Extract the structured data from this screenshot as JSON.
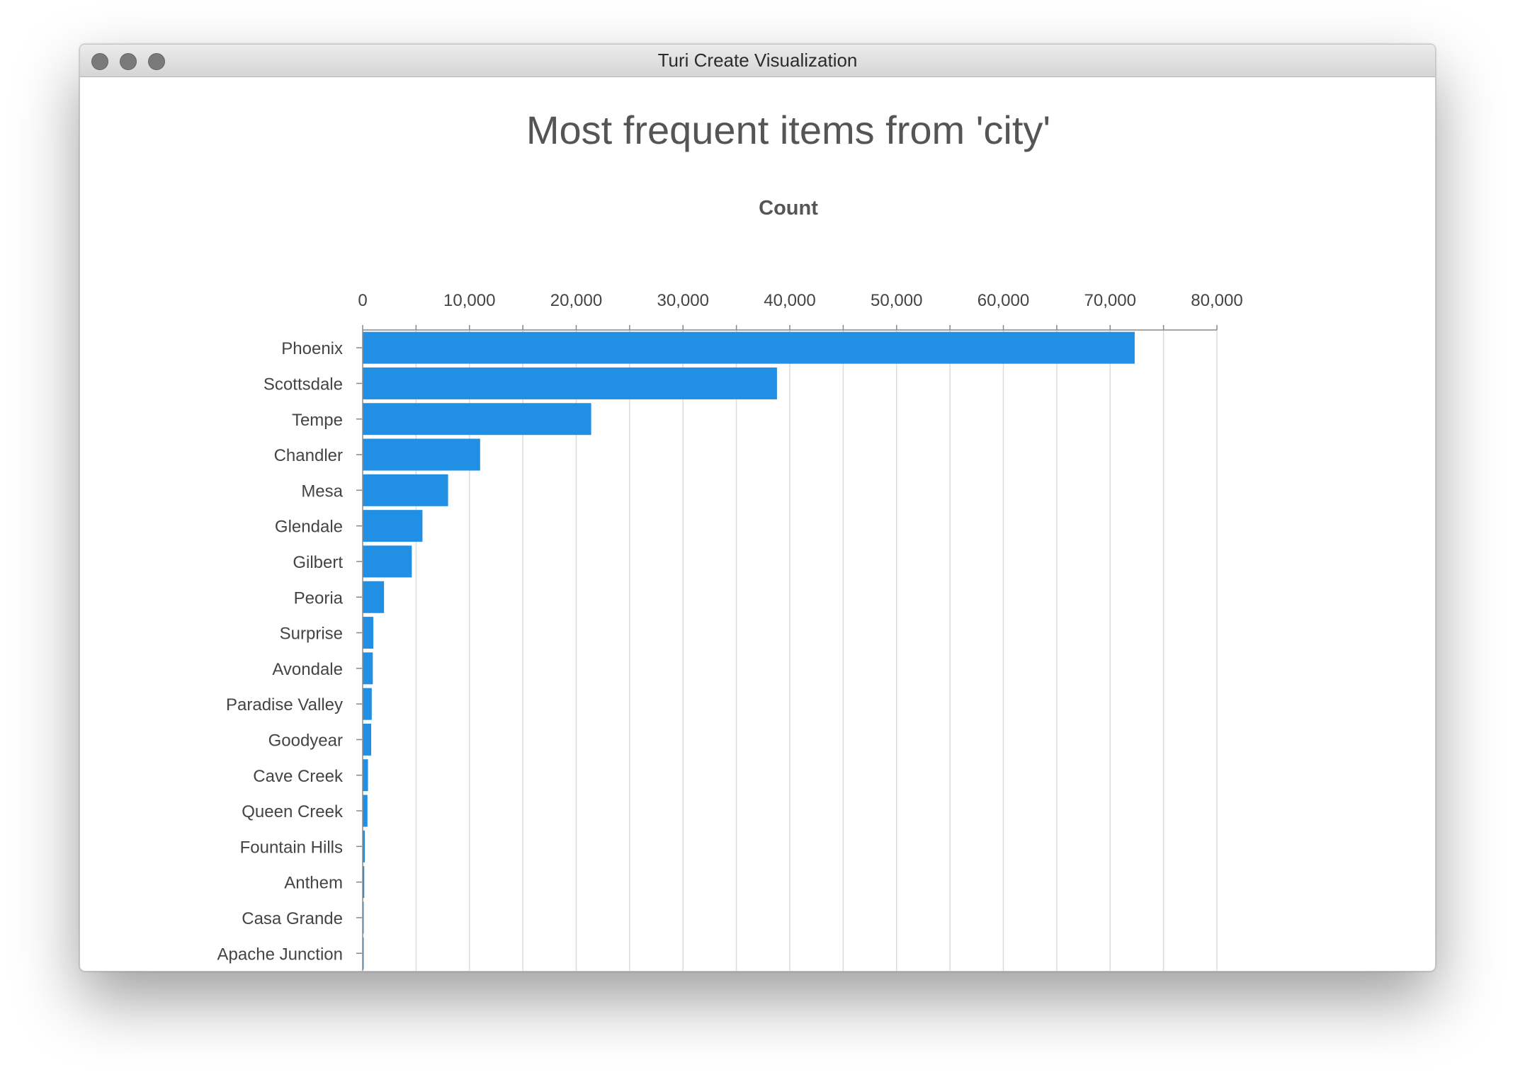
{
  "window": {
    "title": "Turi Create Visualization",
    "controls": [
      "close-icon",
      "minimize-icon",
      "zoom-icon"
    ]
  },
  "chart_data": {
    "type": "bar",
    "orientation": "horizontal",
    "title": "Most frequent items from 'city'",
    "xlabel": "Count",
    "ylabel": "",
    "xlim": [
      0,
      80000
    ],
    "x_ticks": [
      0,
      10000,
      20000,
      30000,
      40000,
      50000,
      60000,
      70000,
      80000
    ],
    "x_tick_labels": [
      "0",
      "10,000",
      "20,000",
      "30,000",
      "40,000",
      "50,000",
      "60,000",
      "70,000",
      "80,000"
    ],
    "axis_position": "top",
    "grid": true,
    "bar_color": "#2190e4",
    "categories": [
      "Phoenix",
      "Scottsdale",
      "Tempe",
      "Chandler",
      "Mesa",
      "Glendale",
      "Gilbert",
      "Peoria",
      "Surprise",
      "Avondale",
      "Paradise Valley",
      "Goodyear",
      "Cave Creek",
      "Queen Creek",
      "Fountain Hills",
      "Anthem",
      "Casa Grande",
      "Apache Junction"
    ],
    "values": [
      72300,
      38800,
      21400,
      11000,
      8000,
      5600,
      4600,
      2000,
      1000,
      950,
      850,
      800,
      500,
      450,
      200,
      150,
      100,
      80
    ]
  }
}
